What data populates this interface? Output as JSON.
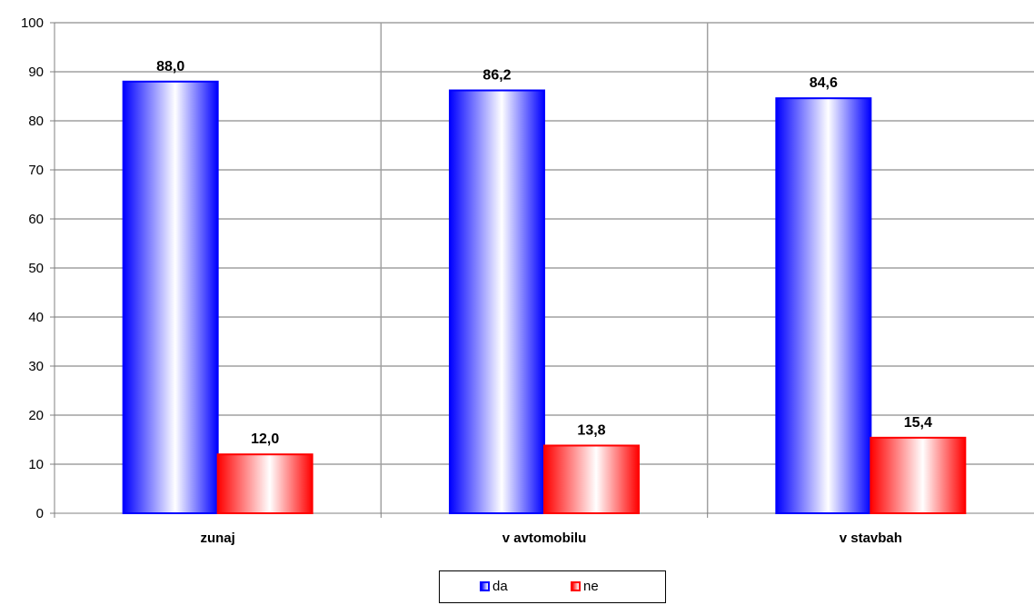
{
  "chart_data": {
    "type": "bar",
    "categories": [
      "zunaj",
      "v avtomobilu",
      "v stavbah"
    ],
    "series": [
      {
        "name": "da",
        "values": [
          88.0,
          86.2,
          84.6
        ],
        "color": "#0000ff"
      },
      {
        "name": "ne",
        "values": [
          12.0,
          13.8,
          15.4
        ],
        "color": "#ff0000"
      }
    ],
    "data_labels": [
      [
        "88,0",
        "86,2",
        "84,6"
      ],
      [
        "12,0",
        "13,8",
        "15,4"
      ]
    ],
    "ylim": [
      0,
      100
    ],
    "yticks": [
      0,
      10,
      20,
      30,
      40,
      50,
      60,
      70,
      80,
      90,
      100
    ],
    "grid": true,
    "legend_position": "bottom",
    "title": "",
    "xlabel": "",
    "ylabel": ""
  }
}
